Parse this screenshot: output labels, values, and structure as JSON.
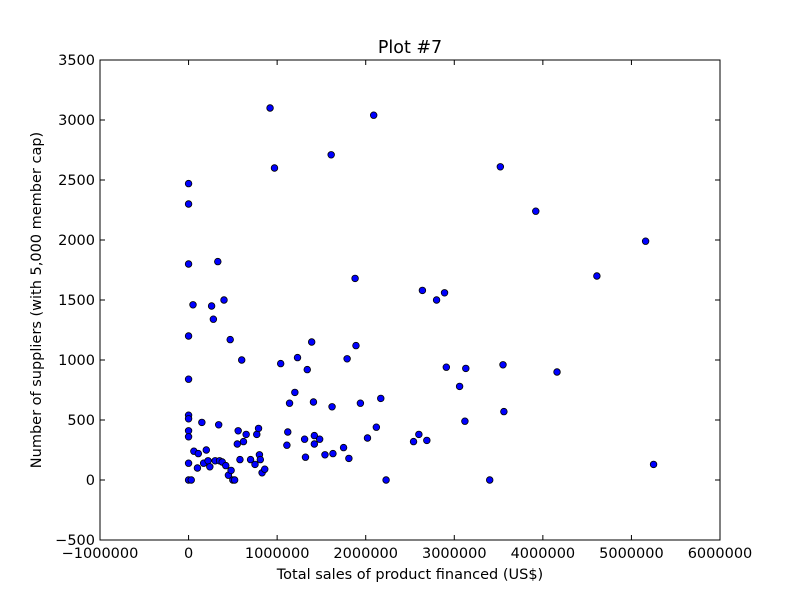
{
  "chart_data": {
    "type": "scatter",
    "title": "Plot #7",
    "xlabel": "Total sales of product financed (US$)",
    "ylabel": "Number of suppliers (with 5,000 member cap)",
    "xlim": [
      -1000000,
      6000000
    ],
    "ylim": [
      -500,
      3500
    ],
    "xticks": [
      -1000000,
      0,
      1000000,
      2000000,
      3000000,
      4000000,
      5000000,
      6000000
    ],
    "xtick_labels": [
      "−1000000",
      "0",
      "1000000",
      "2000000",
      "3000000",
      "4000000",
      "5000000",
      "6000000"
    ],
    "yticks": [
      -500,
      0,
      500,
      1000,
      1500,
      2000,
      2500,
      3000,
      3500
    ],
    "ytick_labels": [
      "−500",
      "0",
      "500",
      "1000",
      "1500",
      "2000",
      "2500",
      "3000",
      "3500"
    ],
    "grid": false,
    "marker_color": "#0000ff",
    "marker_edge_color": "#000000",
    "series": [
      {
        "points": [
          [
            0,
            2470
          ],
          [
            0,
            2300
          ],
          [
            0,
            1800
          ],
          [
            0,
            1200
          ],
          [
            0,
            840
          ],
          [
            0,
            540
          ],
          [
            0,
            510
          ],
          [
            0,
            410
          ],
          [
            0,
            360
          ],
          [
            0,
            140
          ],
          [
            0,
            0
          ],
          [
            30000,
            0
          ],
          [
            50000,
            1460
          ],
          [
            60000,
            240
          ],
          [
            100000,
            100
          ],
          [
            110000,
            220
          ],
          [
            150000,
            480
          ],
          [
            170000,
            140
          ],
          [
            200000,
            250
          ],
          [
            220000,
            160
          ],
          [
            240000,
            110
          ],
          [
            260000,
            1450
          ],
          [
            280000,
            1340
          ],
          [
            300000,
            160
          ],
          [
            330000,
            1820
          ],
          [
            340000,
            460
          ],
          [
            350000,
            160
          ],
          [
            380000,
            150
          ],
          [
            400000,
            1500
          ],
          [
            420000,
            120
          ],
          [
            450000,
            40
          ],
          [
            470000,
            1170
          ],
          [
            480000,
            80
          ],
          [
            500000,
            0
          ],
          [
            520000,
            0
          ],
          [
            550000,
            300
          ],
          [
            560000,
            410
          ],
          [
            580000,
            170
          ],
          [
            600000,
            1000
          ],
          [
            620000,
            320
          ],
          [
            650000,
            380
          ],
          [
            700000,
            170
          ],
          [
            750000,
            130
          ],
          [
            770000,
            380
          ],
          [
            790000,
            430
          ],
          [
            800000,
            210
          ],
          [
            810000,
            170
          ],
          [
            830000,
            60
          ],
          [
            860000,
            90
          ],
          [
            920000,
            3100
          ],
          [
            970000,
            2600
          ],
          [
            1040000,
            970
          ],
          [
            1110000,
            290
          ],
          [
            1120000,
            400
          ],
          [
            1140000,
            640
          ],
          [
            1200000,
            730
          ],
          [
            1230000,
            1020
          ],
          [
            1310000,
            340
          ],
          [
            1320000,
            190
          ],
          [
            1340000,
            920
          ],
          [
            1390000,
            1150
          ],
          [
            1410000,
            650
          ],
          [
            1420000,
            370
          ],
          [
            1420000,
            300
          ],
          [
            1480000,
            340
          ],
          [
            1540000,
            210
          ],
          [
            1610000,
            2710
          ],
          [
            1620000,
            610
          ],
          [
            1630000,
            220
          ],
          [
            1750000,
            270
          ],
          [
            1790000,
            1010
          ],
          [
            1810000,
            180
          ],
          [
            1880000,
            1680
          ],
          [
            1890000,
            1120
          ],
          [
            1940000,
            640
          ],
          [
            2020000,
            350
          ],
          [
            2090000,
            3040
          ],
          [
            2120000,
            440
          ],
          [
            2170000,
            680
          ],
          [
            2230000,
            0
          ],
          [
            2540000,
            320
          ],
          [
            2600000,
            380
          ],
          [
            2640000,
            1580
          ],
          [
            2690000,
            330
          ],
          [
            2800000,
            1500
          ],
          [
            2890000,
            1560
          ],
          [
            2910000,
            940
          ],
          [
            3060000,
            780
          ],
          [
            3120000,
            490
          ],
          [
            3130000,
            930
          ],
          [
            3400000,
            0
          ],
          [
            3520000,
            2610
          ],
          [
            3550000,
            960
          ],
          [
            3560000,
            570
          ],
          [
            3920000,
            2240
          ],
          [
            4160000,
            900
          ],
          [
            4610000,
            1700
          ],
          [
            5160000,
            1990
          ],
          [
            5250000,
            130
          ]
        ]
      }
    ]
  }
}
